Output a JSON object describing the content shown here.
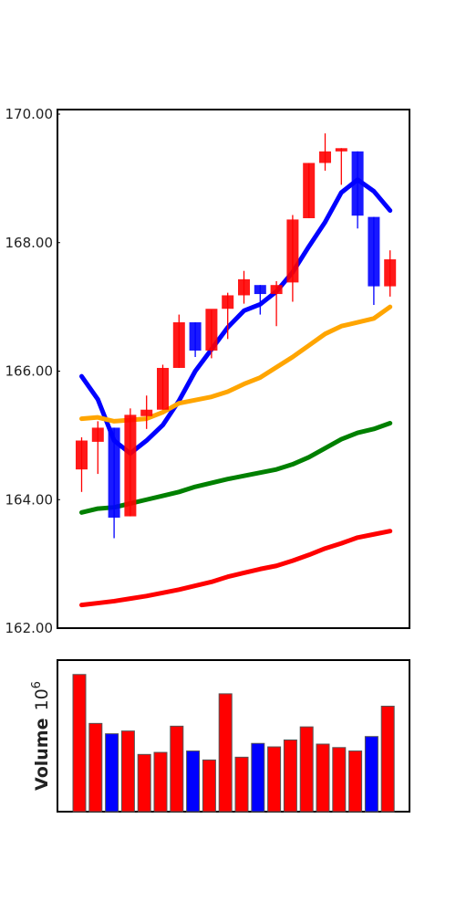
{
  "chart_data": [
    {
      "type": "candlestick",
      "ylim": [
        162.0,
        170.0
      ],
      "y_ticks": [
        "162.00",
        "164.00",
        "166.00",
        "168.00",
        "170.00"
      ],
      "grid": false,
      "up_color": "#ff0000",
      "down_color": "#0000ff",
      "candles": [
        {
          "open": 164.47,
          "high": 164.97,
          "low": 164.12,
          "close": 164.92
        },
        {
          "open": 164.9,
          "high": 165.22,
          "low": 164.4,
          "close": 165.12
        },
        {
          "open": 165.12,
          "high": 165.12,
          "low": 163.4,
          "close": 163.72
        },
        {
          "open": 163.74,
          "high": 165.42,
          "low": 163.74,
          "close": 165.32
        },
        {
          "open": 165.3,
          "high": 165.62,
          "low": 165.1,
          "close": 165.4
        },
        {
          "open": 165.4,
          "high": 166.1,
          "low": 165.4,
          "close": 166.05
        },
        {
          "open": 166.05,
          "high": 166.88,
          "low": 166.05,
          "close": 166.76
        },
        {
          "open": 166.76,
          "high": 166.76,
          "low": 166.22,
          "close": 166.32
        },
        {
          "open": 166.32,
          "high": 166.95,
          "low": 166.2,
          "close": 166.97
        },
        {
          "open": 166.97,
          "high": 167.22,
          "low": 166.5,
          "close": 167.18
        },
        {
          "open": 167.18,
          "high": 167.56,
          "low": 167.05,
          "close": 167.43
        },
        {
          "open": 167.34,
          "high": 167.34,
          "low": 166.88,
          "close": 167.2
        },
        {
          "open": 167.2,
          "high": 167.4,
          "low": 166.7,
          "close": 167.34
        },
        {
          "open": 167.38,
          "high": 168.43,
          "low": 167.08,
          "close": 168.36
        },
        {
          "open": 168.38,
          "high": 169.24,
          "low": 168.38,
          "close": 169.24
        },
        {
          "open": 169.24,
          "high": 169.7,
          "low": 169.12,
          "close": 169.42
        },
        {
          "open": 169.42,
          "high": 169.47,
          "low": 168.9,
          "close": 169.47
        },
        {
          "open": 169.42,
          "high": 169.42,
          "low": 168.22,
          "close": 168.42
        },
        {
          "open": 168.4,
          "high": 168.4,
          "low": 167.03,
          "close": 167.32
        },
        {
          "open": 167.32,
          "high": 167.88,
          "low": 167.16,
          "close": 167.74
        }
      ],
      "lines": [
        {
          "color": "#0000ff",
          "values": [
            165.92,
            165.56,
            164.92,
            164.72,
            164.92,
            165.16,
            165.54,
            166.0,
            166.34,
            166.68,
            166.94,
            167.04,
            167.24,
            167.54,
            167.94,
            168.32,
            168.78,
            168.98,
            168.8,
            168.5
          ]
        },
        {
          "color": "#ffa500",
          "values": [
            165.26,
            165.28,
            165.22,
            165.24,
            165.26,
            165.36,
            165.5,
            165.55,
            165.6,
            165.68,
            165.8,
            165.9,
            166.06,
            166.22,
            166.4,
            166.58,
            166.7,
            166.76,
            166.82,
            167.0
          ]
        },
        {
          "color": "#008000",
          "values": [
            163.8,
            163.86,
            163.88,
            163.94,
            164.0,
            164.06,
            164.12,
            164.2,
            164.26,
            164.32,
            164.37,
            164.42,
            164.47,
            164.55,
            164.66,
            164.8,
            164.94,
            165.04,
            165.1,
            165.19
          ]
        },
        {
          "color": "#ff0000",
          "values": [
            162.36,
            162.39,
            162.42,
            162.46,
            162.5,
            162.55,
            162.6,
            162.66,
            162.72,
            162.8,
            162.86,
            162.92,
            162.97,
            163.05,
            163.14,
            163.24,
            163.32,
            163.41,
            163.46,
            163.51
          ]
        }
      ]
    },
    {
      "type": "bar",
      "ylabel": "Volume",
      "ylabel_unit": "10",
      "ylabel_unit_exp": "6",
      "ylim": [
        0,
        1.0
      ],
      "values": [
        0.995,
        0.64,
        0.565,
        0.585,
        0.415,
        0.43,
        0.62,
        0.44,
        0.375,
        0.855,
        0.395,
        0.495,
        0.47,
        0.52,
        0.615,
        0.49,
        0.465,
        0.44,
        0.545,
        0.765
      ],
      "colors": [
        "#ff0000",
        "#ff0000",
        "#0000ff",
        "#ff0000",
        "#ff0000",
        "#ff0000",
        "#ff0000",
        "#0000ff",
        "#ff0000",
        "#ff0000",
        "#ff0000",
        "#0000ff",
        "#ff0000",
        "#ff0000",
        "#ff0000",
        "#ff0000",
        "#ff0000",
        "#ff0000",
        "#0000ff",
        "#ff0000"
      ]
    }
  ]
}
